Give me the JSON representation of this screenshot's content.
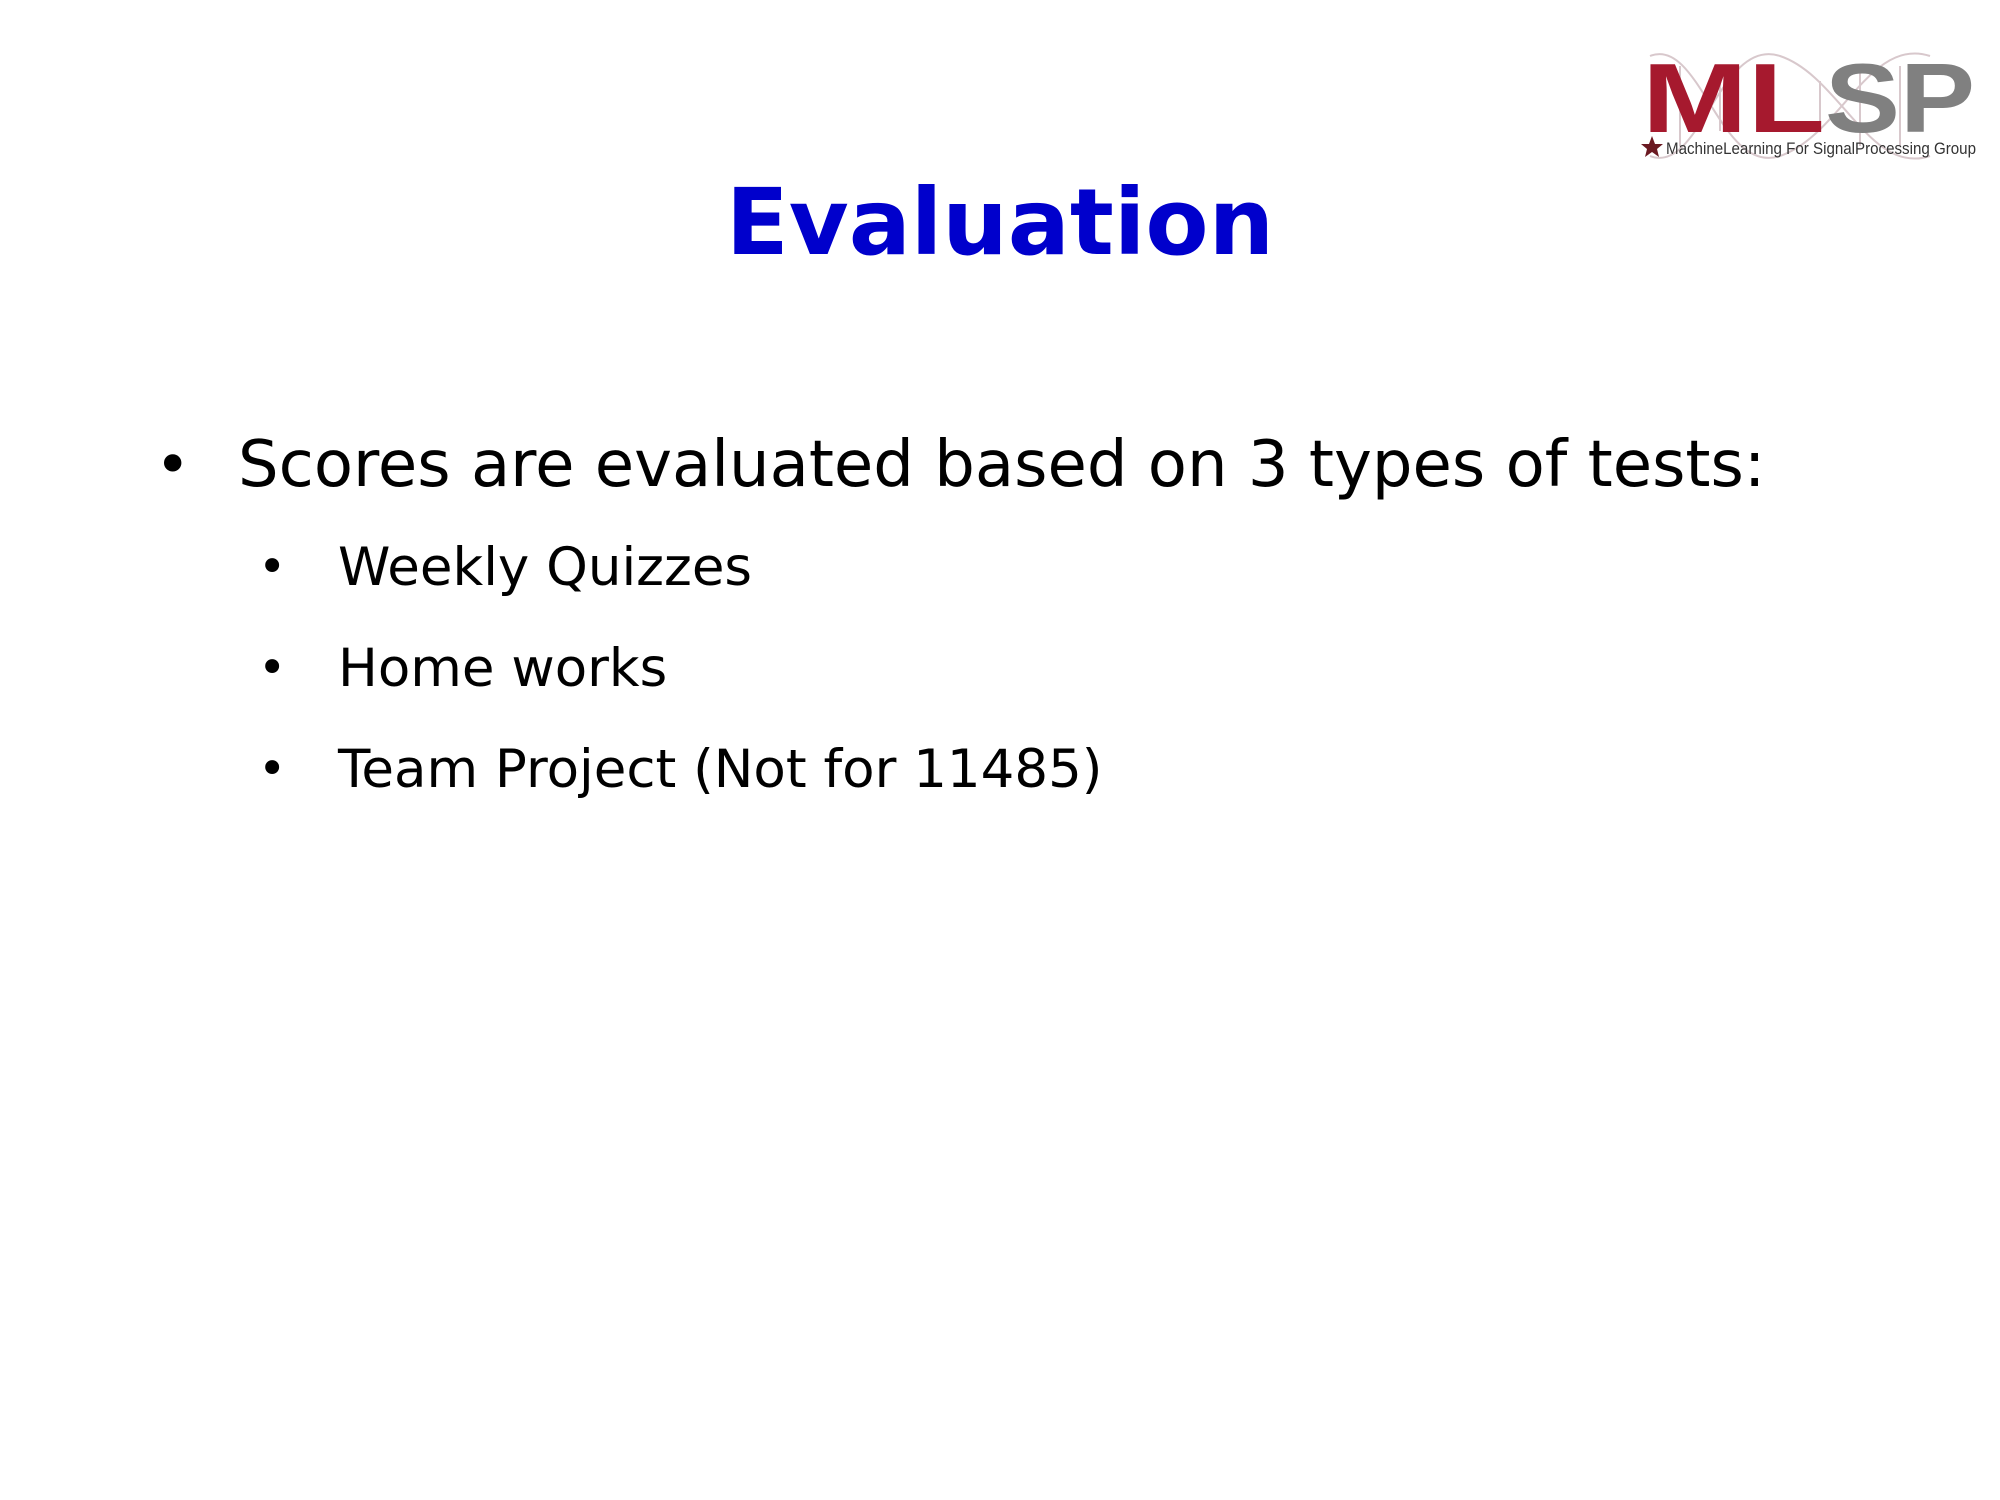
{
  "slide": {
    "title": "Evaluation",
    "title_color": "#0000CC",
    "logo": {
      "name": "MLSP logo",
      "text": "MLSP",
      "tagline": "MachineLearning For SignalProcessing Group",
      "colors": {
        "ml": "#A6192E",
        "sp": "#808080"
      }
    },
    "bullets": [
      {
        "text": "Scores are evaluated based on 3 types of tests:",
        "children": [
          {
            "text": "Weekly Quizzes"
          },
          {
            "text": "Home works"
          },
          {
            "text": "Team Project (Not for 11485)"
          }
        ]
      }
    ],
    "bullet_symbol": "•"
  }
}
